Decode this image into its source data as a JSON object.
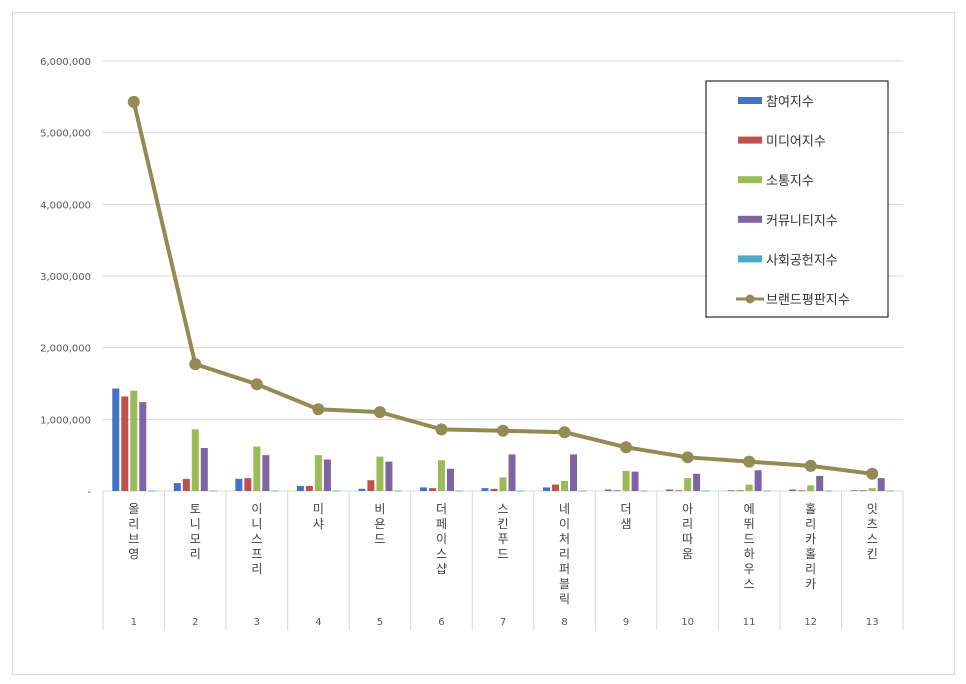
{
  "chart_data": {
    "type": "bar",
    "title": "",
    "xlabel": "",
    "ylabel": "",
    "ylim": [
      0,
      6000000
    ],
    "yticks": [
      0,
      1000000,
      2000000,
      3000000,
      4000000,
      5000000,
      6000000
    ],
    "ytick_labels": [
      "-",
      "1,000,000",
      "2,000,000",
      "3,000,000",
      "4,000,000",
      "5,000,000",
      "6,000,000"
    ],
    "grid": true,
    "legend_position": "top-right",
    "categories": [
      "올리브영",
      "토니모리",
      "이니스프리",
      "미샤",
      "비욘드",
      "더페이스샵",
      "스킨푸드",
      "네이처리퍼블릭",
      "더샘",
      "아리따움",
      "에뛰드하우스",
      "홀리카홀리카",
      "잇츠스킨"
    ],
    "category_numbers": [
      "1",
      "2",
      "3",
      "4",
      "5",
      "6",
      "7",
      "8",
      "9",
      "10",
      "11",
      "12",
      "13"
    ],
    "bar_series": [
      {
        "name": "참여지수",
        "color": "#4472c4",
        "values": [
          1430000,
          110000,
          170000,
          70000,
          30000,
          50000,
          40000,
          50000,
          20000,
          20000,
          10000,
          20000,
          10000
        ]
      },
      {
        "name": "미디어지수",
        "color": "#c0504d",
        "values": [
          1320000,
          170000,
          180000,
          70000,
          150000,
          40000,
          30000,
          90000,
          10000,
          10000,
          10000,
          10000,
          10000
        ]
      },
      {
        "name": "소통지수",
        "color": "#9bbb59",
        "values": [
          1400000,
          860000,
          620000,
          500000,
          480000,
          430000,
          190000,
          140000,
          280000,
          180000,
          90000,
          80000,
          40000
        ]
      },
      {
        "name": "커뮤니티지수",
        "color": "#8064a2",
        "values": [
          1240000,
          600000,
          500000,
          440000,
          410000,
          310000,
          510000,
          510000,
          270000,
          240000,
          290000,
          210000,
          180000
        ]
      },
      {
        "name": "사회공헌지수",
        "color": "#4bacc6",
        "values": [
          5000,
          5000,
          5000,
          5000,
          5000,
          5000,
          5000,
          5000,
          5000,
          5000,
          5000,
          5000,
          5000
        ]
      }
    ],
    "line_series": {
      "name": "브랜드평판지수",
      "color": "#948a54",
      "values": [
        5430000,
        1770000,
        1490000,
        1140000,
        1100000,
        860000,
        840000,
        820000,
        610000,
        470000,
        410000,
        350000,
        240000
      ]
    }
  }
}
